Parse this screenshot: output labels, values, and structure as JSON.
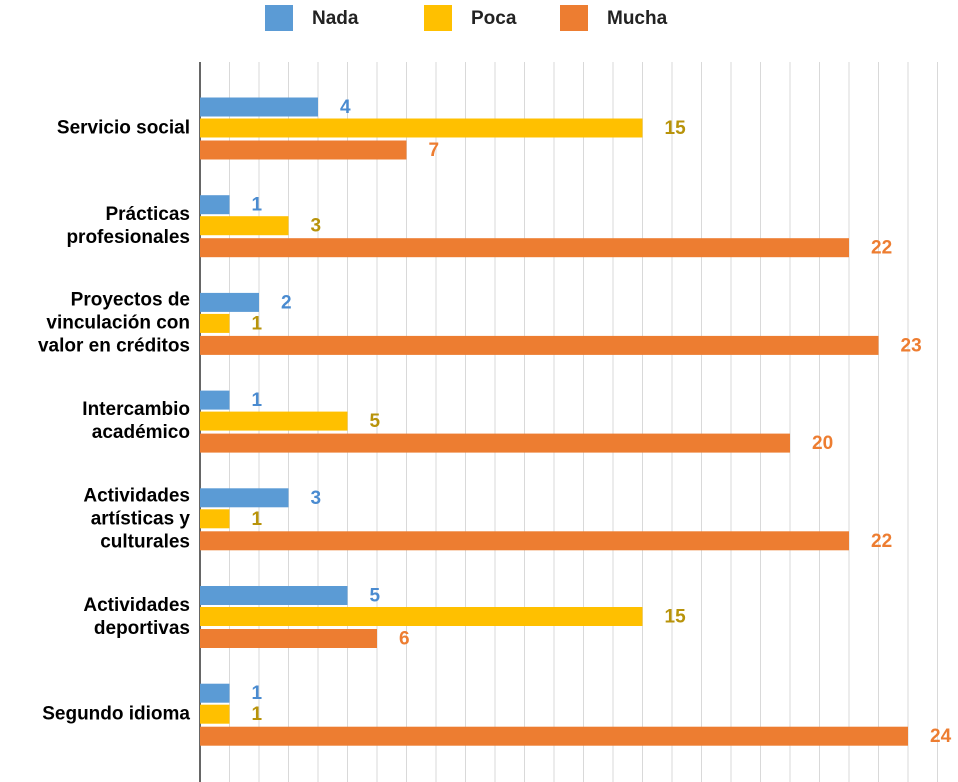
{
  "chart_data": {
    "type": "hbar",
    "categories": [
      "Servicio social",
      "Prácticas profesionales",
      "Proyectos de vinculación con valor en créditos",
      "Intercambio académico",
      "Actividades artísticas y culturales",
      "Actividades deportivas",
      "Segundo idioma"
    ],
    "series": [
      {
        "name": "Nada",
        "color": "#5b9bd5",
        "label_color": "#4a8bd0",
        "values": [
          4,
          1,
          2,
          1,
          3,
          5,
          1
        ]
      },
      {
        "name": "Poca",
        "color": "#ffc000",
        "label_color": "#b8930a",
        "values": [
          15,
          3,
          1,
          5,
          1,
          15,
          1
        ]
      },
      {
        "name": "Mucha",
        "color": "#ed7d31",
        "label_color": "#ed7d31",
        "values": [
          7,
          22,
          23,
          20,
          22,
          6,
          24
        ]
      }
    ],
    "xlim": [
      0,
      25
    ],
    "xticks": [
      0,
      1,
      2,
      3,
      4,
      5,
      6,
      7,
      8,
      9,
      10,
      11,
      12,
      13,
      14,
      15,
      16,
      17,
      18,
      19,
      20,
      21,
      22,
      23,
      24,
      25
    ],
    "grid": true,
    "legend": "top"
  }
}
